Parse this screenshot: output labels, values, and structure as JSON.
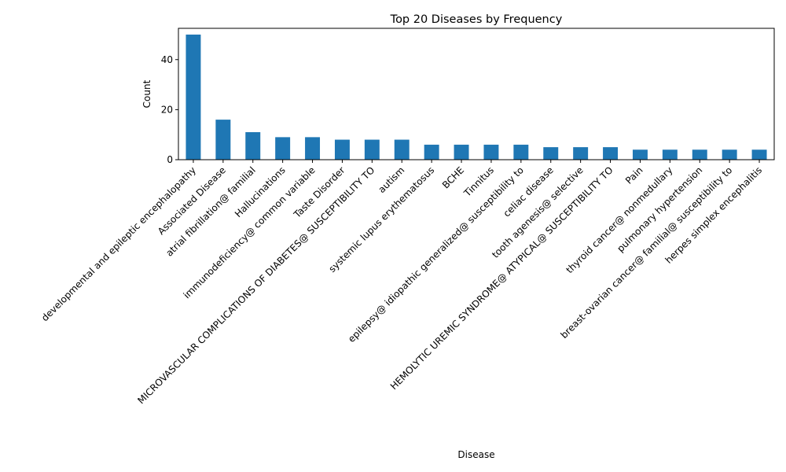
{
  "chart_data": {
    "type": "bar",
    "title": "Top 20 Diseases by Frequency",
    "xlabel": "Disease",
    "ylabel": "Count",
    "ylim": [
      0,
      52.5
    ],
    "yticks": [
      0,
      20,
      40
    ],
    "grid": false,
    "bar_color": "#1f77b4",
    "categories": [
      "developmental and epileptic encephalopathy",
      "Associated Disease",
      "atrial fibrillation@ familial",
      "Hallucinations",
      "immunodeficiency@ common variable",
      "Taste Disorder",
      "MICROVASCULAR COMPLICATIONS OF DIABETES@ SUSCEPTIBILITY TO",
      "autism",
      "systemic lupus erythematosus",
      "BCHE",
      "Tinnitus",
      "epilepsy@ idiopathic generalized@ susceptibility to",
      "celiac disease",
      "tooth agenesis@ selective",
      "HEMOLYTIC UREMIC SYNDROME@ ATYPICAL@ SUSCEPTIBILITY TO",
      "Pain",
      "thyroid cancer@ nonmedullary",
      "pulmonary hypertension",
      "breast-ovarian cancer@ familial@ susceptibility to",
      "herpes simplex encephalitis"
    ],
    "values": [
      50,
      16,
      11,
      9,
      9,
      8,
      8,
      8,
      6,
      6,
      6,
      6,
      5,
      5,
      5,
      4,
      4,
      4,
      4,
      4
    ]
  }
}
